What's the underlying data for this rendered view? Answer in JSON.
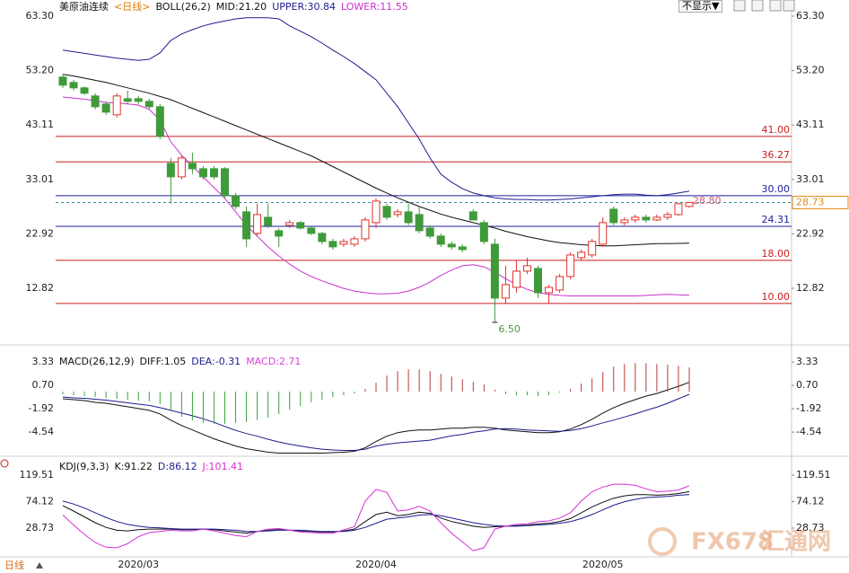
{
  "chart_data": [
    {
      "type": "candlestick",
      "title": "美原油连续",
      "period": "<日线>",
      "indicator": "BOLL(26,2)",
      "categories": [
        null,
        null,
        null,
        null,
        null,
        null,
        null,
        "2020/03",
        null,
        null,
        null,
        null,
        null,
        null,
        null,
        null,
        null,
        null,
        null,
        null,
        null,
        null,
        null,
        null,
        null,
        null,
        null,
        null,
        null,
        "2020/04",
        null,
        null,
        null,
        null,
        null,
        null,
        null,
        null,
        null,
        null,
        null,
        null,
        null,
        null,
        null,
        null,
        null,
        null,
        null,
        null,
        "2020/05",
        null,
        null,
        null,
        null,
        null,
        null,
        null,
        null
      ],
      "open": [
        52,
        51,
        50,
        48.5,
        47,
        45,
        48,
        48,
        47.5,
        46.5,
        36,
        33.5,
        36,
        35,
        35,
        35,
        30,
        27,
        23,
        26,
        23.5,
        24.5,
        25,
        24,
        23,
        21.5,
        21,
        21,
        22,
        25,
        28,
        26.5,
        27,
        26.5,
        24,
        22.5,
        21,
        20.5,
        27,
        25,
        21,
        11,
        13,
        16,
        16.5,
        12,
        12.5,
        15,
        18.5,
        19,
        21,
        27.5,
        25,
        25.5,
        26,
        25.5,
        26,
        26.5,
        28
      ],
      "high": [
        52.5,
        51.5,
        50.3,
        49,
        47.5,
        49,
        49.5,
        48.5,
        48,
        47,
        37,
        37.5,
        38,
        35.5,
        35.5,
        35.3,
        30.5,
        28,
        28.5,
        28.5,
        24,
        25.5,
        25.3,
        24.3,
        23.3,
        22,
        22,
        22.5,
        26,
        29.5,
        28.5,
        27.5,
        28.5,
        28,
        24.5,
        23,
        21.5,
        21,
        27.5,
        25.5,
        22,
        17,
        18,
        18.5,
        17,
        13.5,
        15.5,
        19.5,
        20,
        22,
        26,
        28,
        26,
        26.5,
        26.5,
        26.5,
        27,
        28.7,
        28.8
      ],
      "low": [
        50,
        49.5,
        48.7,
        46,
        45,
        44.5,
        47,
        47,
        46,
        40.5,
        28.5,
        33,
        34,
        33,
        33,
        29.5,
        27.5,
        20.5,
        22.5,
        24,
        20.5,
        24,
        23.7,
        22.7,
        21,
        20,
        20.5,
        20.5,
        21.5,
        24,
        25.5,
        26,
        24.5,
        23,
        22,
        20.5,
        20,
        19.5,
        25.5,
        21,
        6.5,
        10,
        12,
        15.5,
        11,
        10,
        12,
        14.5,
        18,
        18.5,
        20.5,
        24.5,
        24.5,
        25,
        25,
        25.3,
        25.5,
        26.3,
        27.8
      ],
      "close": [
        50.5,
        50,
        49,
        46.5,
        45.5,
        48.5,
        47.5,
        47.5,
        46.5,
        41,
        33.5,
        37,
        35,
        33.5,
        33.5,
        30,
        28,
        22,
        26.5,
        24.5,
        22.5,
        25,
        24,
        23,
        21.5,
        20.5,
        21.5,
        22,
        25.5,
        29,
        26,
        27,
        25,
        23.5,
        22.5,
        21,
        20.5,
        20,
        25.5,
        21.5,
        11,
        13.5,
        16,
        17,
        12,
        13,
        15,
        19,
        19.5,
        21.5,
        25,
        25,
        25.5,
        26,
        25.5,
        26,
        26.5,
        28.5,
        28.73
      ],
      "up_color": "#e0322c",
      "down_color": "#3f9a3a",
      "series": [
        {
          "name": "MID:21.20",
          "color": "#111111",
          "values": [
            52.5,
            52.2,
            51.8,
            51.4,
            51,
            50.5,
            50,
            49.5,
            49,
            48.4,
            47.8,
            47,
            46.2,
            45.4,
            44.6,
            43.8,
            43,
            42.2,
            41.4,
            40.6,
            39.8,
            39,
            38.2,
            37.4,
            36.4,
            35.4,
            34.4,
            33.4,
            32.4,
            31.4,
            30.5,
            29.6,
            28.8,
            28,
            27.3,
            26.6,
            26,
            25.5,
            25,
            24.5,
            24,
            23.4,
            22.9,
            22.4,
            22,
            21.6,
            21.3,
            21.1,
            20.9,
            20.8,
            20.7,
            20.7,
            20.8,
            20.9,
            21,
            21.1,
            21.1,
            21.15,
            21.2
          ]
        },
        {
          "name": "UPPER:30.84",
          "color": "#1c1c8e",
          "values": [
            57,
            56.7,
            56.4,
            56.1,
            55.8,
            55.5,
            55.3,
            55.1,
            55.3,
            56.5,
            58.8,
            60,
            60.8,
            61.5,
            62,
            62.4,
            62.8,
            63,
            63,
            63,
            62.8,
            61.5,
            60.5,
            59.5,
            58.3,
            57,
            55.8,
            54.5,
            53,
            51.5,
            49,
            46.5,
            43.5,
            40.5,
            37,
            34,
            32.5,
            31.3,
            30.5,
            30,
            29.6,
            29.4,
            29.3,
            29.3,
            29.2,
            29.2,
            29.3,
            29.4,
            29.6,
            29.8,
            30,
            30.2,
            30.3,
            30.3,
            30.1,
            30,
            30.2,
            30.5,
            30.84
          ]
        },
        {
          "name": "LOWER:11.55",
          "color": "#cc30cc",
          "values": [
            48.3,
            48.1,
            47.9,
            47.6,
            47.3,
            47.2,
            47,
            46.8,
            46,
            44,
            40,
            37.5,
            35.5,
            33.5,
            31.5,
            29.5,
            27,
            24.5,
            22.5,
            20.5,
            18.8,
            17.3,
            16,
            15,
            14.2,
            13.5,
            12.8,
            12.3,
            12,
            11.8,
            11.8,
            11.9,
            12.3,
            13,
            14,
            15.2,
            16.2,
            17,
            17.2,
            16.8,
            15.8,
            14.6,
            13.5,
            12.6,
            12,
            11.7,
            11.5,
            11.4,
            11.4,
            11.4,
            11.4,
            11.4,
            11.4,
            11.4,
            11.5,
            11.6,
            11.7,
            11.6,
            11.55
          ]
        }
      ],
      "levels": [
        {
          "value": 41,
          "label": "41.00",
          "color": "#c81e1e"
        },
        {
          "value": 36.27,
          "label": "36.27",
          "color": "#c81e1e"
        },
        {
          "value": 30,
          "label": "30.00",
          "color": "#1c1c9e"
        },
        {
          "value": 24.31,
          "label": "24.31",
          "color": "#1c1c9e"
        },
        {
          "value": 18,
          "label": "18.00",
          "color": "#c81e1e"
        },
        {
          "value": 10,
          "label": "10.00",
          "color": "#c81e1e"
        }
      ],
      "last_price": {
        "value": 28.73,
        "label": "28.73",
        "color": "#e08a1e"
      },
      "annotations": [
        {
          "value": 6.5,
          "label": "6.50",
          "color": "#4a9a3a",
          "at": "low"
        },
        {
          "value": 28.8,
          "label": "28.80",
          "color": "#d06070",
          "at": "high"
        }
      ],
      "ylim": [
        2.49,
        66.3
      ],
      "yticks": [
        {
          "value": 63.3,
          "label": "63.30"
        },
        {
          "value": 53.2,
          "label": "53.20"
        },
        43.11,
        33.01,
        22.92,
        12.82
      ]
    },
    {
      "type": "bar",
      "title": "MACD(26,12,9)",
      "up_color": "#b83a3a",
      "down_color": "#3aa03a",
      "series": [
        {
          "name": "DIFF:1.05",
          "color": "#111111",
          "type": "line",
          "values": [
            -0.8,
            -0.9,
            -1.0,
            -1.2,
            -1.3,
            -1.5,
            -1.7,
            -1.9,
            -2.1,
            -2.5,
            -3.2,
            -3.8,
            -4.3,
            -4.8,
            -5.3,
            -5.7,
            -6.1,
            -6.4,
            -6.6,
            -6.8,
            -6.9,
            -6.9,
            -6.9,
            -6.9,
            -6.9,
            -6.85,
            -6.8,
            -6.7,
            -6.3,
            -5.6,
            -5.0,
            -4.6,
            -4.4,
            -4.3,
            -4.3,
            -4.2,
            -4.1,
            -4.1,
            -4.0,
            -4.0,
            -4.1,
            -4.3,
            -4.4,
            -4.5,
            -4.6,
            -4.6,
            -4.5,
            -4.2,
            -3.7,
            -3.1,
            -2.4,
            -1.8,
            -1.3,
            -0.9,
            -0.5,
            -0.2,
            0.2,
            0.6,
            1.05
          ]
        },
        {
          "name": "DEA:-0.31",
          "color": "#1c1c8e",
          "type": "line",
          "values": [
            -0.6,
            -0.7,
            -0.75,
            -0.85,
            -0.95,
            -1.1,
            -1.25,
            -1.4,
            -1.55,
            -1.8,
            -2.1,
            -2.4,
            -2.7,
            -3.05,
            -3.45,
            -3.9,
            -4.35,
            -4.7,
            -5.0,
            -5.35,
            -5.65,
            -5.9,
            -6.1,
            -6.3,
            -6.45,
            -6.55,
            -6.6,
            -6.6,
            -6.45,
            -6.1,
            -5.9,
            -5.75,
            -5.65,
            -5.55,
            -5.45,
            -5.2,
            -4.95,
            -4.8,
            -4.55,
            -4.4,
            -4.2,
            -4.15,
            -4.2,
            -4.3,
            -4.35,
            -4.4,
            -4.45,
            -4.35,
            -4.15,
            -3.85,
            -3.5,
            -3.2,
            -2.85,
            -2.5,
            -2.1,
            -1.75,
            -1.3,
            -0.8,
            -0.31
          ]
        },
        {
          "name": "MACD:2.71",
          "color": "#e040e0",
          "type": "bar",
          "values": [
            -0.3,
            -0.4,
            -0.5,
            -0.6,
            -0.7,
            -0.8,
            -0.9,
            -1.0,
            -1.1,
            -1.4,
            -2.2,
            -2.8,
            -3.2,
            -3.5,
            -3.6,
            -3.6,
            -3.5,
            -3.4,
            -3.2,
            -2.9,
            -2.5,
            -2.0,
            -1.6,
            -1.2,
            -0.9,
            -0.6,
            -0.4,
            -0.2,
            0.3,
            1.0,
            1.8,
            2.3,
            2.5,
            2.5,
            2.3,
            2.0,
            1.7,
            1.4,
            1.1,
            0.8,
            0.2,
            -0.3,
            -0.4,
            -0.4,
            -0.5,
            -0.4,
            -0.1,
            0.3,
            0.9,
            1.5,
            2.2,
            2.8,
            3.1,
            3.2,
            3.2,
            3.1,
            3.0,
            2.9,
            2.71
          ]
        }
      ],
      "ylim": [
        -7.15,
        4.14
      ],
      "yticks": [
        3.33,
        {
          "value": 0.7,
          "label": "0.70"
        },
        -1.92,
        -4.54
      ]
    },
    {
      "type": "line",
      "title": "KDJ(9,3,3)",
      "series": [
        {
          "name": "K:91.22",
          "color": "#111111",
          "values": [
            67,
            58,
            48,
            38,
            30,
            25,
            24,
            26,
            27,
            27,
            27,
            26,
            26,
            27,
            26,
            24,
            22,
            20,
            23,
            25,
            26,
            25,
            24,
            23,
            22,
            22,
            24,
            27,
            40,
            52,
            56,
            50,
            52,
            56,
            54,
            46,
            40,
            36,
            32,
            30,
            31,
            32,
            33,
            34,
            36,
            37,
            40,
            45,
            55,
            65,
            73,
            80,
            84,
            86,
            86,
            85,
            86,
            88,
            91.22
          ]
        },
        {
          "name": "D:86.12",
          "color": "#1c1c8e",
          "values": [
            75,
            70,
            63,
            55,
            47,
            40,
            35,
            32,
            30,
            29,
            28,
            27,
            27,
            27,
            27,
            26,
            25,
            23,
            23,
            24,
            25,
            25,
            25,
            24,
            23,
            23,
            23,
            25,
            30,
            37,
            44,
            46,
            48,
            51,
            52,
            50,
            46,
            42,
            38,
            35,
            33,
            32,
            32,
            33,
            34,
            35,
            37,
            40,
            45,
            52,
            60,
            68,
            74,
            78,
            81,
            82,
            83,
            85,
            86.12
          ]
        },
        {
          "name": "J:101.41",
          "color": "#d630d6",
          "values": [
            51,
            34,
            18,
            4,
            -4,
            -5,
            2,
            14,
            21,
            23,
            25,
            24,
            24,
            27,
            24,
            20,
            16,
            14,
            23,
            27,
            28,
            25,
            22,
            21,
            20,
            20,
            26,
            31,
            75,
            95,
            90,
            58,
            60,
            66,
            58,
            38,
            20,
            5,
            -10,
            -5,
            27,
            32,
            35,
            36,
            40,
            41,
            46,
            55,
            75,
            91,
            99,
            104,
            104,
            102,
            96,
            91,
            92,
            94,
            101.41
          ]
        }
      ],
      "ylim": [
        -20.5,
        145.7
      ],
      "yticks": [
        119.51,
        74.12,
        28.73
      ]
    }
  ],
  "ui": {
    "display_toggle": "不显示▼",
    "period_button": "日线",
    "watermark_brand": "FX678",
    "watermark_name": "汇通网"
  }
}
